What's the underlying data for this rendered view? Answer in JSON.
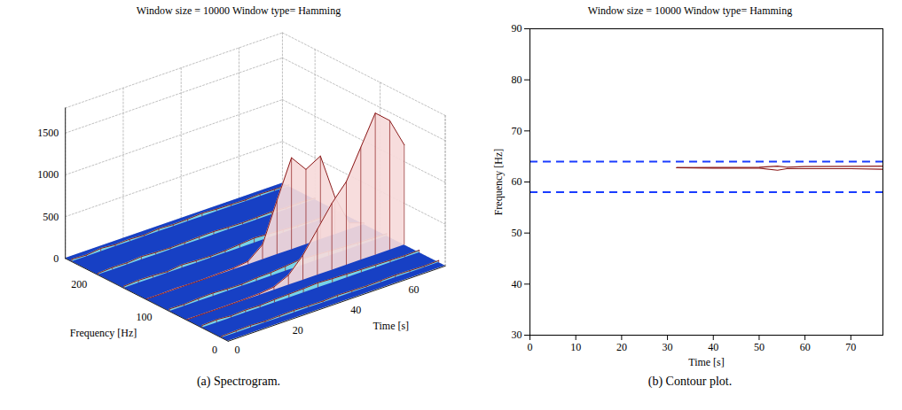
{
  "chart_data": [
    {
      "type": "surface",
      "title": "Window size = 10000 Window type= Hamming",
      "caption": "(a) Spectrogram.",
      "x_label": "Time [s]",
      "y_label": "Frequency [Hz]",
      "x": [
        0,
        5,
        10,
        15,
        20,
        25,
        30,
        35,
        40,
        45,
        50,
        55,
        60,
        65,
        70,
        75
      ],
      "y": [
        240,
        200,
        160,
        125,
        90,
        63,
        40,
        10
      ],
      "z": [
        [
          30,
          20,
          40,
          25,
          30,
          20,
          35,
          25,
          30,
          40,
          30,
          25,
          20,
          30,
          25,
          20
        ],
        [
          20,
          30,
          25,
          40,
          30,
          25,
          30,
          35,
          40,
          30,
          25,
          30,
          35,
          25,
          30,
          20
        ],
        [
          25,
          35,
          30,
          20,
          40,
          30,
          25,
          30,
          45,
          60,
          50,
          40,
          30,
          25,
          30,
          20
        ],
        [
          10,
          10,
          15,
          10,
          10,
          15,
          20,
          40,
          180,
          650,
          1100,
          900,
          1000,
          450,
          80,
          20
        ],
        [
          30,
          25,
          35,
          40,
          30,
          25,
          40,
          45,
          60,
          80,
          70,
          60,
          50,
          40,
          35,
          30
        ],
        [
          10,
          10,
          10,
          10,
          15,
          20,
          40,
          120,
          300,
          550,
          800,
          1000,
          1350,
          1700,
          1550,
          1200
        ],
        [
          30,
          40,
          25,
          35,
          30,
          40,
          45,
          50,
          60,
          50,
          45,
          40,
          35,
          30,
          25,
          30
        ],
        [
          20,
          25,
          30,
          20,
          25,
          30,
          25,
          20,
          30,
          25,
          20,
          25,
          30,
          25,
          20,
          25
        ]
      ],
      "xlim": [
        0,
        75
      ],
      "ylim": [
        0,
        250
      ],
      "zlim": [
        0,
        1800
      ],
      "xticks": [
        0,
        20,
        40,
        60
      ],
      "yticks": [
        0,
        100,
        200
      ],
      "zticks": [
        0,
        500,
        1000,
        1500
      ],
      "grid": true,
      "color": "#8b1a1a"
    },
    {
      "type": "contour",
      "title": "Window size = 10000 Window type= Hamming",
      "caption": "(b) Contour plot.",
      "x_label": "Time [s]",
      "y_label": "Frequency [Hz]",
      "contours": [
        {
          "x": [
            32,
            40,
            50,
            54,
            56,
            60,
            70,
            77
          ],
          "y": [
            62.8,
            62.85,
            62.9,
            63.1,
            62.9,
            63.0,
            63.05,
            63.1
          ]
        },
        {
          "x": [
            32,
            40,
            50,
            54,
            56,
            60,
            70,
            77
          ],
          "y": [
            62.8,
            62.7,
            62.7,
            62.3,
            62.6,
            62.6,
            62.6,
            62.5
          ]
        }
      ],
      "hlines": {
        "values": [
          58,
          64
        ],
        "color": "#1a3cff",
        "line_style": "dashed"
      },
      "xlim": [
        0,
        77
      ],
      "ylim": [
        30,
        90
      ],
      "xticks": [
        0,
        10,
        20,
        30,
        40,
        50,
        60,
        70
      ],
      "yticks": [
        30,
        40,
        50,
        60,
        70,
        80,
        90
      ],
      "grid": false,
      "color": "#8b1a1a"
    }
  ]
}
